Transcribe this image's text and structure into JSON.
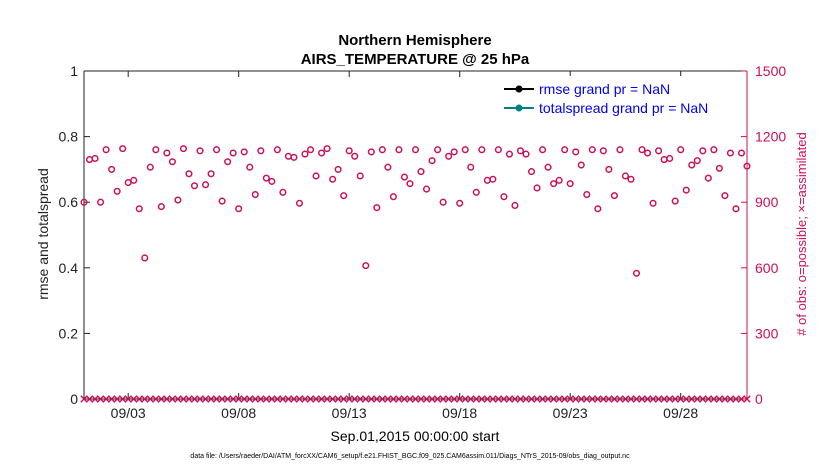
{
  "chart_data": {
    "type": "scatter",
    "title": [
      "Northern Hemisphere",
      "AIRS_TEMPERATURE @ 25 hPa"
    ],
    "xlabel": "Sep.01,2015 00:00:00 start",
    "ylabel_left": "rmse and totalspread",
    "ylabel_right": "# of obs: o=possible; ×=assimilated",
    "xlim": [
      0,
      30
    ],
    "ylim_left": [
      0,
      1
    ],
    "ylim_right": [
      0,
      1500
    ],
    "x_ticks": [
      {
        "value": 2,
        "label": "09/03"
      },
      {
        "value": 7,
        "label": "09/08"
      },
      {
        "value": 12,
        "label": "09/13"
      },
      {
        "value": 17,
        "label": "09/18"
      },
      {
        "value": 22,
        "label": "09/23"
      },
      {
        "value": 27,
        "label": "09/28"
      }
    ],
    "y_ticks_left": [
      {
        "value": 0,
        "label": "0"
      },
      {
        "value": 0.2,
        "label": "0.2"
      },
      {
        "value": 0.4,
        "label": "0.4"
      },
      {
        "value": 0.6,
        "label": "0.6"
      },
      {
        "value": 0.8,
        "label": "0.8"
      },
      {
        "value": 1,
        "label": "1"
      }
    ],
    "y_ticks_right": [
      {
        "value": 0,
        "label": "0"
      },
      {
        "value": 300,
        "label": "300"
      },
      {
        "value": 600,
        "label": "600"
      },
      {
        "value": 900,
        "label": "900"
      },
      {
        "value": 1200,
        "label": "1200"
      },
      {
        "value": 1500,
        "label": "1500"
      }
    ],
    "legend": {
      "placement": "top-right",
      "entries": [
        {
          "label": "rmse grand pr = NaN",
          "color": "#000000"
        },
        {
          "label": "totalspread grand pr = NaN",
          "color": "#008080"
        }
      ]
    },
    "series": [
      {
        "name": "possible",
        "marker": "circle",
        "color": "#cc0f5a",
        "axis": "right",
        "x": [
          0.0,
          0.25,
          0.5,
          0.75,
          1.0,
          1.25,
          1.5,
          1.75,
          2.0,
          2.25,
          2.5,
          2.75,
          3.0,
          3.25,
          3.5,
          3.75,
          4.0,
          4.25,
          4.5,
          4.75,
          5.0,
          5.25,
          5.5,
          5.75,
          6.0,
          6.25,
          6.5,
          6.75,
          7.0,
          7.25,
          7.5,
          7.75,
          8.0,
          8.25,
          8.5,
          8.75,
          9.0,
          9.25,
          9.5,
          9.75,
          10.0,
          10.25,
          10.5,
          10.75,
          11.0,
          11.25,
          11.5,
          11.75,
          12.0,
          12.25,
          12.5,
          12.75,
          13.0,
          13.25,
          13.5,
          13.75,
          14.0,
          14.25,
          14.5,
          14.75,
          15.0,
          15.25,
          15.5,
          15.75,
          16.0,
          16.25,
          16.5,
          16.75,
          17.0,
          17.25,
          17.5,
          17.75,
          18.0,
          18.25,
          18.5,
          18.75,
          19.0,
          19.25,
          19.5,
          19.75,
          20.0,
          20.25,
          20.5,
          20.75,
          21.0,
          21.25,
          21.5,
          21.75,
          22.0,
          22.25,
          22.5,
          22.75,
          23.0,
          23.25,
          23.5,
          23.75,
          24.0,
          24.25,
          24.5,
          24.75,
          25.0,
          25.25,
          25.5,
          25.75,
          26.0,
          26.25,
          26.5,
          26.75,
          27.0,
          27.25,
          27.5,
          27.75,
          28.0,
          28.25,
          28.5,
          28.75,
          29.0,
          29.25,
          29.5,
          29.75,
          30.0
        ],
        "y": [
          900,
          1095,
          1100,
          900,
          1140,
          1050,
          950,
          1145,
          990,
          1000,
          870,
          645,
          1060,
          1140,
          880,
          1125,
          1085,
          910,
          1145,
          1030,
          975,
          1135,
          980,
          1030,
          1140,
          905,
          1085,
          1125,
          870,
          1130,
          1060,
          935,
          1135,
          1010,
          995,
          1140,
          945,
          1110,
          1105,
          895,
          1120,
          1140,
          1020,
          1125,
          1145,
          1005,
          1050,
          930,
          1135,
          1110,
          1020,
          610,
          1130,
          875,
          1140,
          1060,
          925,
          1140,
          1015,
          985,
          1140,
          1040,
          960,
          1090,
          1140,
          900,
          1110,
          1130,
          895,
          1140,
          1060,
          945,
          1140,
          1000,
          1005,
          1140,
          925,
          1120,
          885,
          1135,
          1120,
          1040,
          965,
          1140,
          1060,
          985,
          1000,
          1140,
          985,
          1130,
          1070,
          935,
          1140,
          870,
          1135,
          1050,
          930,
          1140,
          1020,
          1005,
          575,
          1140,
          1125,
          895,
          1135,
          1095,
          1100,
          905,
          1140,
          955,
          1070,
          1090,
          1135,
          1010,
          1140,
          1055,
          930,
          1125,
          870,
          1125,
          1065
        ]
      },
      {
        "name": "assimilated",
        "marker": "x",
        "color": "#cc0f5a",
        "axis": "right",
        "x": [
          0.0,
          0.25,
          0.5,
          0.75,
          1.0,
          1.25,
          1.5,
          1.75,
          2.0,
          2.25,
          2.5,
          2.75,
          3.0,
          3.25,
          3.5,
          3.75,
          4.0,
          4.25,
          4.5,
          4.75,
          5.0,
          5.25,
          5.5,
          5.75,
          6.0,
          6.25,
          6.5,
          6.75,
          7.0,
          7.25,
          7.5,
          7.75,
          8.0,
          8.25,
          8.5,
          8.75,
          9.0,
          9.25,
          9.5,
          9.75,
          10.0,
          10.25,
          10.5,
          10.75,
          11.0,
          11.25,
          11.5,
          11.75,
          12.0,
          12.25,
          12.5,
          12.75,
          13.0,
          13.25,
          13.5,
          13.75,
          14.0,
          14.25,
          14.5,
          14.75,
          15.0,
          15.25,
          15.5,
          15.75,
          16.0,
          16.25,
          16.5,
          16.75,
          17.0,
          17.25,
          17.5,
          17.75,
          18.0,
          18.25,
          18.5,
          18.75,
          19.0,
          19.25,
          19.5,
          19.75,
          20.0,
          20.25,
          20.5,
          20.75,
          21.0,
          21.25,
          21.5,
          21.75,
          22.0,
          22.25,
          22.5,
          22.75,
          23.0,
          23.25,
          23.5,
          23.75,
          24.0,
          24.25,
          24.5,
          24.75,
          25.0,
          25.25,
          25.5,
          25.75,
          26.0,
          26.25,
          26.5,
          26.75,
          27.0,
          27.25,
          27.5,
          27.75,
          28.0,
          28.25,
          28.5,
          28.75,
          29.0,
          29.25,
          29.5,
          29.75,
          30.0
        ],
        "y": [
          0,
          0,
          0,
          0,
          0,
          0,
          0,
          0,
          0,
          0,
          0,
          0,
          0,
          0,
          0,
          0,
          0,
          0,
          0,
          0,
          0,
          0,
          0,
          0,
          0,
          0,
          0,
          0,
          0,
          0,
          0,
          0,
          0,
          0,
          0,
          0,
          0,
          0,
          0,
          0,
          0,
          0,
          0,
          0,
          0,
          0,
          0,
          0,
          0,
          0,
          0,
          0,
          0,
          0,
          0,
          0,
          0,
          0,
          0,
          0,
          0,
          0,
          0,
          0,
          0,
          0,
          0,
          0,
          0,
          0,
          0,
          0,
          0,
          0,
          0,
          0,
          0,
          0,
          0,
          0,
          0,
          0,
          0,
          0,
          0,
          0,
          0,
          0,
          0,
          0,
          0,
          0,
          0,
          0,
          0,
          0,
          0,
          0,
          0,
          0,
          0,
          0,
          0,
          0,
          0,
          0,
          0,
          0,
          0,
          0,
          0,
          0,
          0,
          0,
          0,
          0,
          0,
          0,
          0,
          0,
          0
        ]
      }
    ]
  },
  "footer_note": "data file: /Users/raeder/DAI/ATM_forcXX/CAM6_setup/f.e21.FHIST_BGC.f09_025.CAM6assim.011/Diags_NTrS_2015-09/obs_diag_output.nc",
  "colors": {
    "left_axis": "#222222",
    "right_axis": "#cc0f5a",
    "legend_text": "#0000ee"
  }
}
